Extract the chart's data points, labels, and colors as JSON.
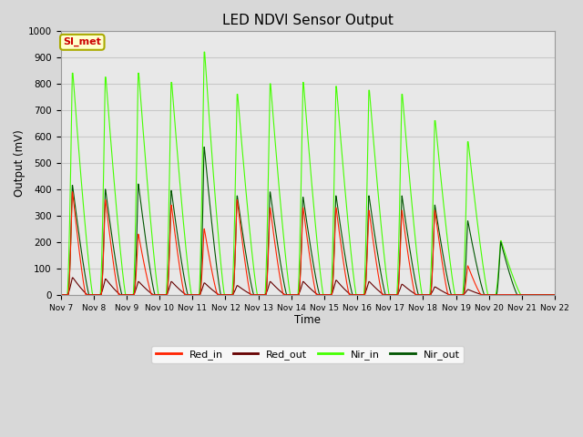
{
  "title": "LED NDVI Sensor Output",
  "xlabel": "Time",
  "ylabel": "Output (mV)",
  "ylim": [
    0,
    1000
  ],
  "x_tick_labels": [
    "Nov 7",
    "Nov 8",
    "Nov 9",
    "Nov 10",
    "Nov 11",
    "Nov 12",
    "Nov 13",
    "Nov 14",
    "Nov 15",
    "Nov 16",
    "Nov 17",
    "Nov 18",
    "Nov 19",
    "Nov 20",
    "Nov 21",
    "Nov 22"
  ],
  "annotation_text": "SI_met",
  "annotation_bg": "#ffffcc",
  "annotation_border": "#aaaa00",
  "annotation_text_color": "#cc0000",
  "bg_color": "#d8d8d8",
  "plot_bg_color": "#e8e8e8",
  "grid_color": "#c8c8c8",
  "series": [
    {
      "name": "Red_in",
      "color": "#ff2200",
      "lw": 0.8
    },
    {
      "name": "Red_out",
      "color": "#660000",
      "lw": 0.8
    },
    {
      "name": "Nir_in",
      "color": "#44ff00",
      "lw": 0.8
    },
    {
      "name": "Nir_out",
      "color": "#005500",
      "lw": 0.8
    }
  ],
  "num_days": 15,
  "peaks_x": [
    0.35,
    1.35,
    2.35,
    3.35,
    4.35,
    5.35,
    6.35,
    7.35,
    8.35,
    9.35,
    10.35,
    11.35,
    12.35,
    13.35,
    14.35
  ],
  "red_in_peaks": [
    390,
    360,
    230,
    340,
    250,
    360,
    330,
    330,
    330,
    320,
    320,
    320,
    110,
    0,
    0
  ],
  "red_out_peaks": [
    65,
    60,
    50,
    50,
    45,
    35,
    50,
    50,
    55,
    50,
    40,
    30,
    20,
    0,
    0
  ],
  "nir_in_peaks": [
    840,
    825,
    840,
    805,
    920,
    760,
    800,
    805,
    790,
    775,
    760,
    660,
    580,
    205,
    0
  ],
  "nir_out_peaks": [
    415,
    400,
    420,
    395,
    560,
    375,
    390,
    370,
    375,
    375,
    375,
    340,
    280,
    200,
    0
  ]
}
